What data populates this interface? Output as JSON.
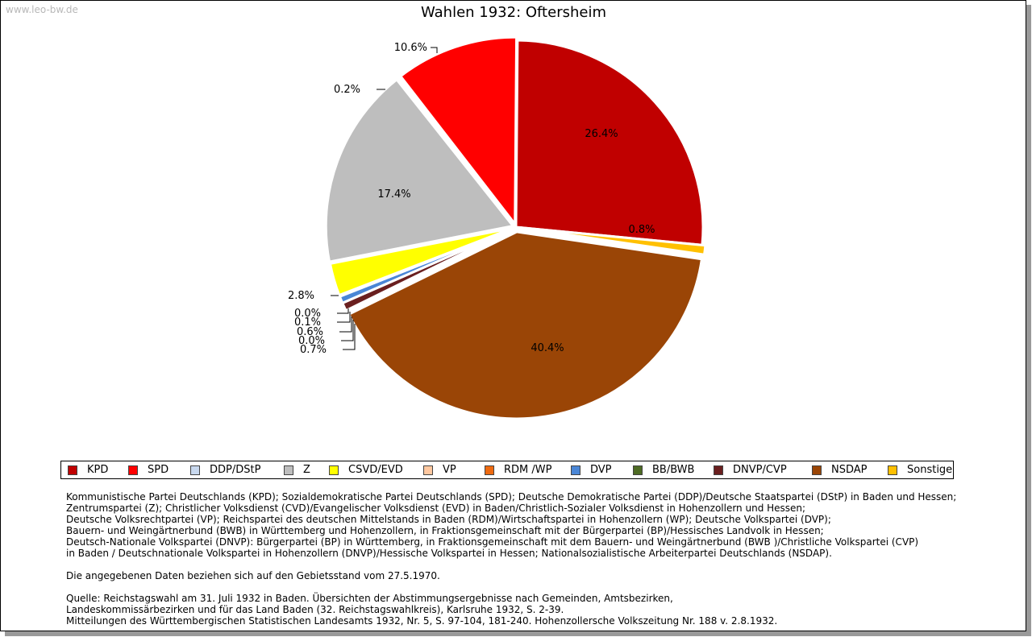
{
  "watermark": "www.leo-bw.de",
  "chart_data": {
    "type": "pie",
    "title": "Wahlen 1932: Oftersheim",
    "slices": [
      {
        "name": "KPD",
        "value": 26.4,
        "label": "26.4%",
        "color": "#c00000"
      },
      {
        "name": "SPD",
        "value": 10.6,
        "label": "10.6%",
        "color": "#ff0000"
      },
      {
        "name": "DDP/DStP",
        "value": 0.2,
        "label": "0.2%",
        "color": "#c8d8ee"
      },
      {
        "name": "Z",
        "value": 17.4,
        "label": "17.4%",
        "color": "#bebebe"
      },
      {
        "name": "CSVD/EVD",
        "value": 2.8,
        "label": "2.8%",
        "color": "#ffff00"
      },
      {
        "name": "VP",
        "value": 0.0,
        "label": "0.0%",
        "color": "#ffc8a0"
      },
      {
        "name": "RDM /WP",
        "value": 0.1,
        "label": "0.1%",
        "color": "#ee6a10"
      },
      {
        "name": "DVP",
        "value": 0.6,
        "label": "0.6%",
        "color": "#4a86d6"
      },
      {
        "name": "BB/BWB",
        "value": 0.0,
        "label": "0.0%",
        "color": "#4e6b24"
      },
      {
        "name": "DNVP/CVP",
        "value": 0.7,
        "label": "0.7%",
        "color": "#6a1f1f"
      },
      {
        "name": "NSDAP",
        "value": 40.4,
        "label": "40.4%",
        "color": "#9a4506"
      },
      {
        "name": "Sonstige",
        "value": 0.8,
        "label": "0.8%",
        "color": "#ffc000"
      }
    ],
    "legend_position": "bottom"
  },
  "notes": [
    "Kommunistische Partei Deutschlands (KPD); Sozialdemokratische Partei Deutschlands (SPD); Deutsche Demokratische Partei (DDP)/Deutsche Staatspartei (DStP) in Baden und Hessen;",
    "Zentrumspartei (Z); Christlicher Volksdienst (CVD)/Evangelischer Volksdienst (EVD) in Baden/Christlich-Sozialer Volksdienst in Hohenzollern und Hessen;",
    "Deutsche Volksrechtpartei (VP); Reichspartei des deutschen Mittelstands in Baden (RDM)/Wirtschaftspartei in Hohenzollern (WP); Deutsche Volkspartei (DVP);",
    "Bauern- und Weingärtnerbund (BWB) in Württemberg und Hohenzollern, in Fraktionsgemeinschaft mit der Bürgerpartei (BP)/Hessisches Landvolk in Hessen;",
    "Deutsch-Nationale Volkspartei (DNVP): Bürgerpartei (BP) in Württemberg, in Fraktionsgemeinschaft mit dem Bauern- und Weingärtnerbund (BWB )/Christliche Volkspartei (CVP)",
    "in Baden / Deutschnationale Volkspartei in Hohenzollern (DNVP)/Hessische Volkspartei in Hessen; Nationalsozialistische Arbeiterpartei Deutschlands (NSDAP).",
    "",
    "Die angegebenen Daten beziehen sich auf den Gebietsstand vom 27.5.1970.",
    "",
    "Quelle: Reichstagswahl am 31. Juli 1932 in Baden. Übersichten der Abstimmungsergebnisse nach Gemeinden, Amtsbezirken,",
    "Landeskommissärbezirken und für das Land Baden (32. Reichstagswahlkreis), Karlsruhe 1932, S. 2-39.",
    "Mitteilungen des Württembergischen Statistischen Landesamts 1932, Nr. 5, S. 97-104, 181-240. Hohenzollersche Volkszeitung Nr. 188 v. 2.8.1932."
  ]
}
